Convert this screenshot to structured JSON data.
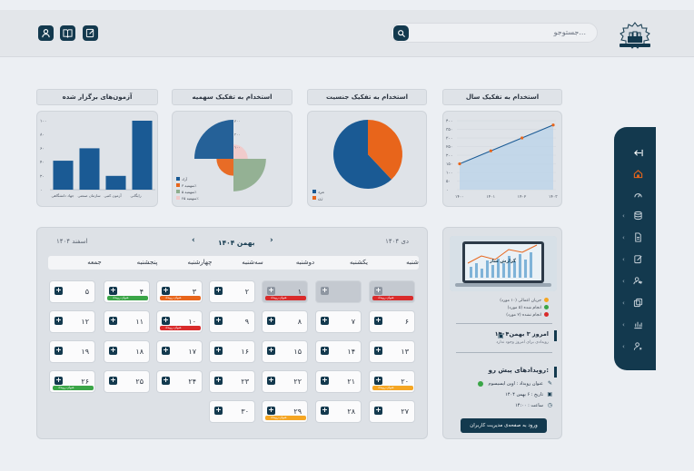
{
  "header": {
    "search_placeholder": "جستوجو..."
  },
  "cards": {
    "year_title": "استخدام به تفکیک سال",
    "gender_title": "استخدام به تفکیک جنسیت",
    "quota_title": "استخدام به تفکیک سهمیه",
    "exams_title": "آزمون‌های برگزار شده"
  },
  "chart_data": [
    {
      "type": "line",
      "title": "استخدام به تفکیک سال",
      "x": [
        "۱۴۰۰",
        "۱۴۰۱",
        "۱۴۰۲",
        "۱۴۰۳"
      ],
      "values": [
        150,
        225,
        300,
        375
      ],
      "yticks": [
        "۴۰۰",
        "۳۵۰",
        "۳۰۰",
        "۲۵۰",
        "۲۰۰",
        "۱۵۰",
        "۱۰۰",
        "۵۰",
        "۰"
      ],
      "ylim": [
        0,
        400
      ],
      "color": "#1a5a94",
      "point_color": "#e8651b"
    },
    {
      "type": "pie",
      "title": "استخدام به تفکیک جنسیت",
      "labels": [
        "مرد",
        "زن"
      ],
      "values": [
        62,
        38
      ],
      "colors": [
        "#1a5a94",
        "#e8651b"
      ]
    },
    {
      "type": "pie",
      "title": "استخدام به تفکیک سهمیه",
      "labels": [
        "آزاد",
        "سهمیه ۳٪",
        "سهمیه ۵٪",
        "سهمیه ۲۵٪"
      ],
      "values": [
        300,
        130,
        250,
        110
      ],
      "colors": [
        "#1a5a94",
        "#e8651b",
        "#8fae8f",
        "#f0c9c9"
      ],
      "rticks": [
        "۳۰۰",
        "۲۰۰",
        "۱۰۰"
      ]
    },
    {
      "type": "bar",
      "title": "آزمون‌های برگزار شده",
      "categories": [
        "رایگانی",
        "آزمون کتبی",
        "سازمان صنعتی",
        "جهاد دانشگاهی"
      ],
      "values": [
        100,
        20,
        60,
        42
      ],
      "yticks": [
        "۱۰۰",
        "۸۰",
        "۶۰",
        "۴۰",
        "۲۰",
        "۰"
      ],
      "ylim": [
        0,
        100
      ],
      "color": "#1a5a94"
    }
  ],
  "calendar": {
    "current_month": "بهمن ۱۴۰۴",
    "prev_month": "دی ۱۴۰۴",
    "next_month": "اسفند ۱۴۰۴",
    "weekdays": [
      "شنبه",
      "یکشنبه",
      "دوشنبه",
      "سه‌شنبه",
      "چهارشنبه",
      "پنجشنبه",
      "جمعه"
    ],
    "event_label": "عنوان رویداد",
    "days": [
      {
        "n": "",
        "dim": true
      },
      {
        "n": "",
        "dim": true
      },
      {
        "n": "۱"
      },
      {
        "n": "۲"
      },
      {
        "n": "۳"
      },
      {
        "n": "۴"
      },
      {
        "n": "۵"
      },
      {
        "n": "۶"
      },
      {
        "n": "۷"
      },
      {
        "n": "۸"
      },
      {
        "n": "۹"
      },
      {
        "n": "۱۰"
      },
      {
        "n": "۱۱"
      },
      {
        "n": "۱۲"
      },
      {
        "n": "۱۳"
      },
      {
        "n": "۱۴"
      },
      {
        "n": "۱۵"
      },
      {
        "n": "۱۶"
      },
      {
        "n": "۱۷"
      },
      {
        "n": "۱۸"
      },
      {
        "n": "۱۹"
      },
      {
        "n": "۲۰"
      },
      {
        "n": "۲۱"
      },
      {
        "n": "۲۲"
      },
      {
        "n": "۲۳"
      },
      {
        "n": "۲۴"
      },
      {
        "n": "۲۵"
      },
      {
        "n": "۲۶"
      },
      {
        "n": "۲۷"
      },
      {
        "n": "۲۸"
      },
      {
        "n": "۲۹"
      },
      {
        "n": "۳۰"
      }
    ]
  },
  "panel": {
    "image_caption": "گزارش ساز",
    "legend": [
      {
        "text": "جریان اعمالی (۱۰ مورد)",
        "color": "#f5a623"
      },
      {
        "text": "انجام شده (۵ مورد)",
        "color": "#3aa547"
      },
      {
        "text": "انجام نشده (۲ مورد)",
        "color": "#d92b2b"
      }
    ],
    "today_title": "امروز ۳ بهمن۱۴۰۴",
    "today_sub": "رویدادی برای امروز وجود ندارد",
    "upcoming_title": "رویدادهای پیش رو:",
    "upcoming_name": "عنوان رویداد : اوپن ایسیسوم",
    "upcoming_date": "تاریخ : ۶ بهمن ۱۴۰۴",
    "upcoming_time": "ساعت : ۱۴:۰۰",
    "manage_button": "ورود به صفحه‌ی مدیریت کاربران"
  }
}
